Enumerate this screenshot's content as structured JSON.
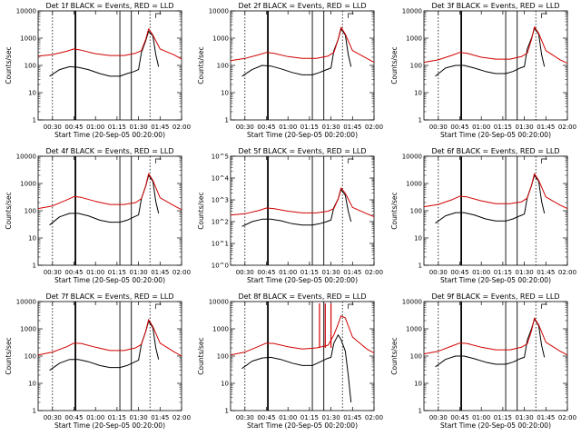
{
  "figure": {
    "xlabel": "Start Time (20-Sep-05 00:20:00)",
    "ylabel": "Counts/sec"
  },
  "chart_data": [
    {
      "type": "line",
      "title": "Det 1f BLACK = Events, RED = LLD",
      "xticks": [
        "00:30",
        "00:45",
        "01:00",
        "01:15",
        "01:30",
        "01:45",
        "02:00"
      ],
      "yscale": "log",
      "yticks": [
        "1",
        "10",
        "100",
        "1000",
        "10000"
      ],
      "series": [
        {
          "name": "Events",
          "color": "#000000",
          "x": [
            "00:28",
            "00:35",
            "00:42",
            "00:48",
            "00:55",
            "01:03",
            "01:10",
            "01:17",
            "01:22",
            "01:27",
            "01:30",
            "01:32",
            "01:35",
            "01:37",
            "01:40",
            "01:42",
            "01:44"
          ],
          "y": [
            40,
            70,
            90,
            85,
            70,
            50,
            40,
            40,
            50,
            60,
            70,
            300,
            800,
            1800,
            1200,
            250,
            90
          ]
        },
        {
          "name": "LLD",
          "color": "#d00000",
          "x": [
            "00:20",
            "00:30",
            "00:40",
            "00:45",
            "00:50",
            "01:00",
            "01:10",
            "01:20",
            "01:28",
            "01:32",
            "01:35",
            "01:37",
            "01:40",
            "01:45",
            "01:55",
            "02:00"
          ],
          "y": [
            220,
            250,
            330,
            400,
            360,
            270,
            230,
            230,
            280,
            350,
            900,
            2200,
            1300,
            400,
            240,
            170
          ]
        }
      ],
      "markers_dotted": [
        "00:30",
        "01:38"
      ],
      "markers_solid": [
        "00:46",
        "01:17",
        "01:25"
      ]
    },
    {
      "type": "line",
      "title": "Det 2f BLACK = Events, RED = LLD",
      "xticks": [
        "00:30",
        "00:45",
        "01:00",
        "01:15",
        "01:30",
        "01:45",
        "02:00"
      ],
      "yscale": "log",
      "yticks": [
        "1",
        "10",
        "100",
        "1000",
        "10000"
      ],
      "series": [
        {
          "name": "Events",
          "color": "#000000",
          "x": [
            "00:28",
            "00:35",
            "00:42",
            "00:48",
            "00:55",
            "01:03",
            "01:10",
            "01:17",
            "01:22",
            "01:27",
            "01:30",
            "01:32",
            "01:35",
            "01:37",
            "01:40",
            "01:42",
            "01:44"
          ],
          "y": [
            40,
            70,
            100,
            95,
            75,
            55,
            45,
            45,
            55,
            70,
            80,
            350,
            900,
            2200,
            1300,
            250,
            90
          ]
        },
        {
          "name": "LLD",
          "color": "#d00000",
          "x": [
            "00:20",
            "00:30",
            "00:40",
            "00:45",
            "00:50",
            "01:00",
            "01:10",
            "01:20",
            "01:28",
            "01:32",
            "01:35",
            "01:37",
            "01:40",
            "01:45",
            "01:55",
            "02:00"
          ],
          "y": [
            150,
            180,
            250,
            300,
            280,
            210,
            180,
            180,
            220,
            300,
            900,
            2500,
            1400,
            350,
            180,
            130
          ]
        }
      ],
      "markers_dotted": [
        "00:30",
        "01:38"
      ],
      "markers_solid": [
        "00:46",
        "01:17",
        "01:25"
      ]
    },
    {
      "type": "line",
      "title": "Det 3f BLACK = Events, RED = LLD",
      "xticks": [
        "00:30",
        "00:45",
        "01:00",
        "01:15",
        "01:30",
        "01:45",
        "02:00"
      ],
      "yscale": "log",
      "yticks": [
        "1",
        "10",
        "100",
        "1000",
        "10000"
      ],
      "series": [
        {
          "name": "Events",
          "color": "#000000",
          "x": [
            "00:28",
            "00:35",
            "00:42",
            "00:48",
            "00:55",
            "01:03",
            "01:10",
            "01:17",
            "01:22",
            "01:27",
            "01:30",
            "01:32",
            "01:35",
            "01:37",
            "01:40",
            "01:42",
            "01:44"
          ],
          "y": [
            40,
            80,
            100,
            100,
            80,
            60,
            50,
            50,
            60,
            80,
            90,
            400,
            1000,
            2300,
            1400,
            250,
            90
          ]
        },
        {
          "name": "LLD",
          "color": "#d00000",
          "x": [
            "00:20",
            "00:30",
            "00:40",
            "00:45",
            "00:50",
            "01:00",
            "01:10",
            "01:20",
            "01:28",
            "01:32",
            "01:35",
            "01:37",
            "01:40",
            "01:45",
            "01:55",
            "02:00"
          ],
          "y": [
            130,
            160,
            240,
            300,
            280,
            200,
            170,
            170,
            210,
            280,
            900,
            2600,
            1500,
            350,
            160,
            120
          ]
        }
      ],
      "markers_dotted": [
        "00:30",
        "01:38"
      ],
      "markers_solid": [
        "00:46",
        "01:17",
        "01:25"
      ]
    },
    {
      "type": "line",
      "title": "Det 4f BLACK = Events, RED = LLD",
      "xticks": [
        "00:30",
        "00:45",
        "01:00",
        "01:15",
        "01:30",
        "01:45",
        "02:00"
      ],
      "yscale": "log",
      "yticks": [
        "1",
        "10",
        "100",
        "1000",
        "10000"
      ],
      "series": [
        {
          "name": "Events",
          "color": "#000000",
          "x": [
            "00:28",
            "00:35",
            "00:42",
            "00:48",
            "00:55",
            "01:03",
            "01:10",
            "01:17",
            "01:22",
            "01:27",
            "01:30",
            "01:32",
            "01:35",
            "01:37",
            "01:40",
            "01:42",
            "01:44"
          ],
          "y": [
            30,
            60,
            80,
            80,
            65,
            45,
            38,
            38,
            45,
            60,
            70,
            280,
            800,
            2000,
            1200,
            220,
            80
          ]
        },
        {
          "name": "LLD",
          "color": "#d00000",
          "x": [
            "00:20",
            "00:30",
            "00:40",
            "00:45",
            "00:50",
            "01:00",
            "01:10",
            "01:20",
            "01:28",
            "01:32",
            "01:35",
            "01:37",
            "01:40",
            "01:45",
            "01:55",
            "02:00"
          ],
          "y": [
            120,
            150,
            250,
            330,
            310,
            220,
            170,
            170,
            200,
            280,
            800,
            2300,
            1300,
            300,
            150,
            110
          ]
        }
      ],
      "markers_dotted": [
        "00:30",
        "01:38"
      ],
      "markers_solid": [
        "00:46",
        "01:17",
        "01:25"
      ]
    },
    {
      "type": "line",
      "title": "Det 5f BLACK = Events, RED = LLD",
      "xticks": [
        "00:30",
        "00:45",
        "01:00",
        "01:15",
        "01:30",
        "01:45",
        "02:00"
      ],
      "yscale": "log",
      "yticks": [
        "10^0",
        "10^1",
        "10^2",
        "10^3",
        "10^4",
        "10^5"
      ],
      "yrange": [
        1,
        100000
      ],
      "series": [
        {
          "name": "Events",
          "color": "#000000",
          "x": [
            "00:28",
            "00:35",
            "00:42",
            "00:48",
            "00:55",
            "01:03",
            "01:10",
            "01:17",
            "01:22",
            "01:27",
            "01:30",
            "01:32",
            "01:35",
            "01:37",
            "01:40",
            "01:42",
            "01:44"
          ],
          "y": [
            60,
            100,
            130,
            130,
            110,
            80,
            70,
            70,
            80,
            100,
            120,
            450,
            1100,
            3000,
            1600,
            300,
            100
          ]
        },
        {
          "name": "LLD",
          "color": "#d00000",
          "x": [
            "00:20",
            "00:30",
            "00:40",
            "00:45",
            "00:50",
            "01:00",
            "01:10",
            "01:20",
            "01:28",
            "01:32",
            "01:35",
            "01:37",
            "01:40",
            "01:45",
            "01:55",
            "02:00"
          ],
          "y": [
            200,
            230,
            330,
            420,
            400,
            300,
            250,
            250,
            300,
            400,
            1100,
            3500,
            2000,
            450,
            230,
            170
          ]
        }
      ],
      "markers_dotted": [
        "00:30",
        "01:38"
      ],
      "markers_solid": [
        "00:46",
        "01:17",
        "01:25"
      ]
    },
    {
      "type": "line",
      "title": "Det 6f BLACK = Events, RED = LLD",
      "xticks": [
        "00:30",
        "00:45",
        "01:00",
        "01:15",
        "01:30",
        "01:45",
        "02:00"
      ],
      "yscale": "log",
      "yticks": [
        "1",
        "10",
        "100",
        "1000",
        "10000"
      ],
      "series": [
        {
          "name": "Events",
          "color": "#000000",
          "x": [
            "00:28",
            "00:35",
            "00:42",
            "00:48",
            "00:55",
            "01:03",
            "01:10",
            "01:17",
            "01:22",
            "01:27",
            "01:30",
            "01:32",
            "01:35",
            "01:37",
            "01:40",
            "01:42",
            "01:44"
          ],
          "y": [
            35,
            65,
            85,
            85,
            70,
            50,
            42,
            42,
            50,
            65,
            75,
            300,
            850,
            2000,
            1200,
            220,
            80
          ]
        },
        {
          "name": "LLD",
          "color": "#d00000",
          "x": [
            "00:20",
            "00:30",
            "00:40",
            "00:45",
            "00:50",
            "01:00",
            "01:10",
            "01:20",
            "01:28",
            "01:32",
            "01:35",
            "01:37",
            "01:40",
            "01:45",
            "01:55",
            "02:00"
          ],
          "y": [
            140,
            170,
            260,
            340,
            320,
            230,
            180,
            180,
            210,
            290,
            850,
            2300,
            1300,
            320,
            160,
            120
          ]
        }
      ],
      "markers_dotted": [
        "00:30",
        "01:38"
      ],
      "markers_solid": [
        "00:46",
        "01:17",
        "01:25"
      ]
    },
    {
      "type": "line",
      "title": "Det 7f BLACK = Events, RED = LLD",
      "xticks": [
        "00:30",
        "00:45",
        "01:00",
        "01:15",
        "01:30",
        "01:45",
        "02:00"
      ],
      "yscale": "log",
      "yticks": [
        "1",
        "10",
        "100",
        "1000",
        "10000"
      ],
      "series": [
        {
          "name": "Events",
          "color": "#000000",
          "x": [
            "00:28",
            "00:35",
            "00:42",
            "00:48",
            "00:55",
            "01:03",
            "01:10",
            "01:17",
            "01:22",
            "01:27",
            "01:30",
            "01:32",
            "01:35",
            "01:37",
            "01:40",
            "01:42",
            "01:44"
          ],
          "y": [
            30,
            55,
            75,
            75,
            62,
            45,
            38,
            38,
            45,
            60,
            70,
            280,
            800,
            1900,
            1100,
            200,
            75
          ]
        },
        {
          "name": "LLD",
          "color": "#d00000",
          "x": [
            "00:20",
            "00:30",
            "00:40",
            "00:45",
            "00:50",
            "01:00",
            "01:10",
            "01:20",
            "01:28",
            "01:32",
            "01:35",
            "01:37",
            "01:40",
            "01:45",
            "01:55",
            "02:00"
          ],
          "y": [
            110,
            140,
            220,
            300,
            290,
            210,
            160,
            160,
            200,
            270,
            800,
            2200,
            1200,
            300,
            140,
            100
          ]
        }
      ],
      "markers_dotted": [
        "00:30",
        "01:38"
      ],
      "markers_solid": [
        "00:46",
        "01:17",
        "01:25"
      ]
    },
    {
      "type": "line",
      "title": "Det 8f BLACK = Events, RED = LLD",
      "xticks": [
        "00:30",
        "00:45",
        "01:00",
        "01:15",
        "01:30",
        "01:45",
        "02:00"
      ],
      "yscale": "log",
      "yticks": [
        "1",
        "10",
        "100",
        "1000",
        "10000"
      ],
      "series": [
        {
          "name": "Events",
          "color": "#000000",
          "x": [
            "00:28",
            "00:35",
            "00:42",
            "00:48",
            "00:55",
            "01:03",
            "01:10",
            "01:17",
            "01:22",
            "01:27",
            "01:30",
            "01:32",
            "01:35",
            "01:37",
            "01:40",
            "01:42",
            "01:44"
          ],
          "y": [
            35,
            65,
            85,
            90,
            75,
            55,
            45,
            45,
            60,
            80,
            90,
            300,
            600,
            400,
            150,
            20,
            2
          ]
        },
        {
          "name": "LLD",
          "color": "#d00000",
          "x": [
            "00:20",
            "00:30",
            "00:40",
            "00:45",
            "00:50",
            "01:00",
            "01:10",
            "01:20",
            "01:28",
            "01:32",
            "01:35",
            "01:37",
            "01:40",
            "01:45",
            "01:55",
            "02:00"
          ],
          "y": [
            110,
            140,
            230,
            300,
            290,
            220,
            180,
            200,
            250,
            600,
            1500,
            3000,
            2500,
            500,
            180,
            130
          ]
        }
      ],
      "markers_dotted": [
        "00:30",
        "01:38"
      ],
      "markers_solid": [
        "00:46",
        "01:17",
        "01:25"
      ],
      "red_spikes": [
        "01:22",
        "01:26",
        "01:30"
      ]
    },
    {
      "type": "line",
      "title": "Det 9f BLACK = Events, RED = LLD",
      "xticks": [
        "00:30",
        "00:45",
        "01:00",
        "01:15",
        "01:30",
        "01:45",
        "02:00"
      ],
      "yscale": "log",
      "yticks": [
        "1",
        "10",
        "100",
        "1000",
        "10000"
      ],
      "series": [
        {
          "name": "Events",
          "color": "#000000",
          "x": [
            "00:28",
            "00:35",
            "00:42",
            "00:48",
            "00:55",
            "01:03",
            "01:10",
            "01:17",
            "01:22",
            "01:27",
            "01:30",
            "01:32",
            "01:35",
            "01:37",
            "01:40",
            "01:42",
            "01:44"
          ],
          "y": [
            40,
            75,
            100,
            100,
            80,
            60,
            50,
            50,
            60,
            80,
            90,
            380,
            1000,
            2300,
            1300,
            250,
            90
          ]
        },
        {
          "name": "LLD",
          "color": "#d00000",
          "x": [
            "00:20",
            "00:30",
            "00:40",
            "00:45",
            "00:50",
            "01:00",
            "01:10",
            "01:20",
            "01:28",
            "01:32",
            "01:35",
            "01:37",
            "01:40",
            "01:45",
            "01:55",
            "02:00"
          ],
          "y": [
            120,
            150,
            240,
            300,
            290,
            210,
            170,
            170,
            210,
            280,
            850,
            2500,
            1400,
            320,
            150,
            110
          ]
        }
      ],
      "markers_dotted": [
        "00:30",
        "01:38"
      ],
      "markers_solid": [
        "00:46",
        "01:17",
        "01:25"
      ]
    }
  ]
}
